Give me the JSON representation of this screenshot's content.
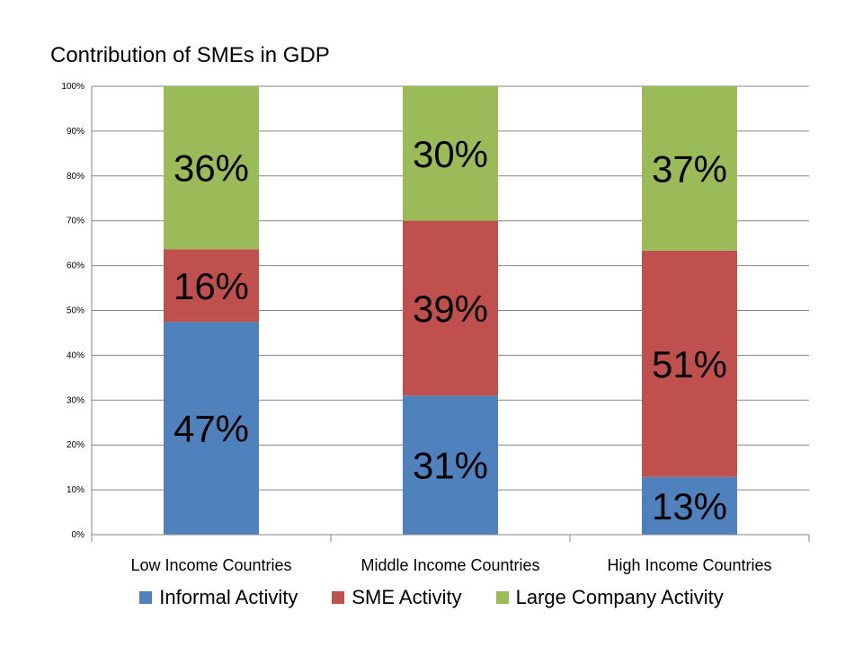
{
  "chart_data": {
    "type": "bar",
    "stacked": true,
    "title": "Contribution of SMEs in GDP",
    "xlabel": "",
    "ylabel": "",
    "ylim": [
      0,
      100
    ],
    "yticks": [
      "0%",
      "10%",
      "20%",
      "30%",
      "40%",
      "50%",
      "60%",
      "70%",
      "80%",
      "90%",
      "100%"
    ],
    "categories": [
      "Low Income Countries",
      "Middle Income Countries",
      "High Income Countries"
    ],
    "grid": true,
    "legend_position": "bottom",
    "series": [
      {
        "name": "Informal Activity",
        "color": "#4f81bd",
        "values": [
          47,
          31,
          13
        ],
        "labels": [
          "47%",
          "31%",
          "13%"
        ]
      },
      {
        "name": "SME Activity",
        "color": "#c0504d",
        "values": [
          16,
          39,
          51
        ],
        "labels": [
          "16%",
          "39%",
          "51%"
        ]
      },
      {
        "name": "Large Company Activity",
        "color": "#9bbb59",
        "values": [
          36,
          30,
          37
        ],
        "labels": [
          "36%",
          "30%",
          "37%"
        ]
      }
    ]
  }
}
